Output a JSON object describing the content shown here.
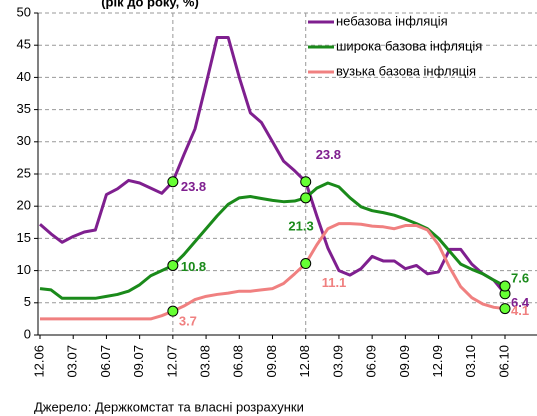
{
  "chart_data": {
    "type": "line",
    "title": "(рік до року, %)",
    "source": "Джерело: Держкомстат та власні розрахунки",
    "categories": [
      "12.06",
      null,
      null,
      "03.07",
      null,
      null,
      "06.07",
      null,
      null,
      "09.07",
      null,
      null,
      "12.07",
      null,
      null,
      "03.08",
      null,
      null,
      "06.08",
      null,
      null,
      "09.08",
      null,
      null,
      "12.08",
      null,
      null,
      "03.09",
      null,
      null,
      "06.09",
      null,
      null,
      "09.09",
      null,
      null,
      "12.09",
      null,
      null,
      "03.10",
      null,
      null,
      "06.10"
    ],
    "series": [
      {
        "name": "небазова інфляція",
        "color": "#7f1f8f",
        "values": [
          17.2,
          15.7,
          14.4,
          15.3,
          16.0,
          16.3,
          21.8,
          22.7,
          24.0,
          23.6,
          22.8,
          22.0,
          23.8,
          28.0,
          32.0,
          39.0,
          46.2,
          46.2,
          40.0,
          34.5,
          33.0,
          30.0,
          27.0,
          25.5,
          23.8,
          18.5,
          13.5,
          10.0,
          9.3,
          10.3,
          12.2,
          11.5,
          11.5,
          10.3,
          10.8,
          9.5,
          9.8,
          13.3,
          13.3,
          11.0,
          9.5,
          8.5,
          6.4
        ]
      },
      {
        "name": "широка базова інфляція",
        "color": "#1a8a1a",
        "values": [
          7.2,
          7.0,
          5.7,
          5.7,
          5.7,
          5.7,
          6.0,
          6.3,
          6.8,
          7.8,
          9.2,
          10.0,
          10.8,
          12.5,
          14.5,
          16.5,
          18.5,
          20.3,
          21.3,
          21.5,
          21.2,
          20.9,
          20.7,
          20.8,
          21.3,
          22.8,
          23.6,
          23.0,
          21.3,
          19.9,
          19.3,
          19.0,
          18.6,
          18.0,
          17.3,
          16.5,
          15.0,
          13.0,
          11.0,
          10.2,
          9.5,
          8.5,
          7.6
        ]
      },
      {
        "name": "вузька базова інфляція",
        "color": "#f08080",
        "values": [
          2.5,
          2.5,
          2.5,
          2.5,
          2.5,
          2.5,
          2.5,
          2.5,
          2.5,
          2.5,
          2.5,
          3.0,
          3.7,
          4.5,
          5.5,
          6.0,
          6.3,
          6.5,
          6.8,
          6.8,
          7.0,
          7.2,
          8.0,
          9.5,
          11.1,
          14.0,
          16.5,
          17.3,
          17.3,
          17.2,
          16.9,
          16.8,
          16.5,
          17.0,
          17.0,
          16.3,
          14.0,
          10.5,
          7.5,
          5.8,
          4.8,
          4.3,
          4.1
        ]
      }
    ],
    "ylim": [
      0,
      50
    ],
    "yticks": [
      0,
      5,
      10,
      15,
      20,
      25,
      30,
      35,
      40,
      45,
      50
    ],
    "grid": true
  }
}
